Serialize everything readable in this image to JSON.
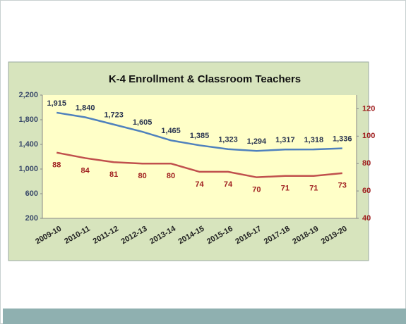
{
  "chart_data": {
    "type": "line",
    "title": "K-4 Enrollment & Classroom Teachers",
    "categories": [
      "2009-10",
      "2010-11",
      "2011-12",
      "2012-13",
      "2013-14",
      "2014-15",
      "2015-16",
      "2016-17",
      "2017-18",
      "2018-19",
      "2019-20"
    ],
    "series": [
      {
        "color": "#4f81bd",
        "values": [
          1915,
          1840,
          1723,
          1605,
          1465,
          1385,
          1323,
          1294,
          1317,
          1318,
          1336
        ],
        "value_labels": [
          "1,915",
          "1,840",
          "1,723",
          "1,605",
          "1,465",
          "1,385",
          "1,323",
          "1,294",
          "1,317",
          "1,318",
          "1,336"
        ]
      },
      {
        "color": "#c0504d",
        "axis": "y2",
        "values": [
          88,
          84,
          81,
          80,
          80,
          74,
          74,
          70,
          71,
          71,
          73
        ]
      }
    ],
    "ylim": [
      200,
      2200
    ],
    "yticks": [
      200,
      600,
      {
        "value": 1000,
        "label": "1,000"
      },
      {
        "value": 1400,
        "label": "1,400"
      },
      {
        "value": 1800,
        "label": "1,800"
      },
      {
        "value": 2200,
        "label": "2,200"
      }
    ],
    "y2lim": [
      40,
      130
    ],
    "y2ticks": [
      40,
      60,
      80,
      100,
      120
    ],
    "grid": false
  }
}
